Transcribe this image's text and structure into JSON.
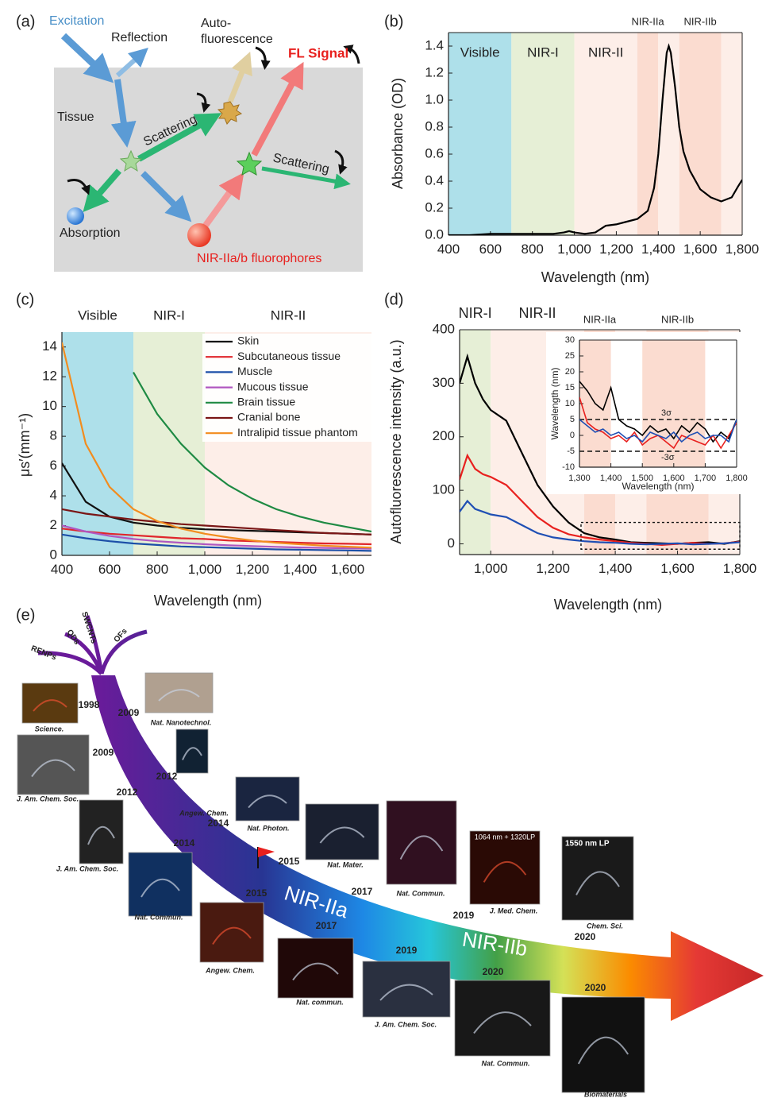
{
  "panel_a": {
    "label": "(a)",
    "excitation": "Excitation",
    "reflection": "Reflection",
    "autofluorescence": [
      "Auto-",
      "fluorescence"
    ],
    "fl_signal": "FL Signal",
    "tissue": "Tissue",
    "scattering": [
      "Scattering",
      "Scattering"
    ],
    "absorption": "Absorption",
    "fluorophores": "NIR-IIa/b fluorophores"
  },
  "chart_data": [
    {
      "type": "line",
      "panel": "(b)",
      "ylabel": "Absorbance (OD)",
      "xlabel": "Wavelength (nm)",
      "regions": [
        {
          "label": "Visible",
          "start": 400,
          "end": 700,
          "color": "#aee0ea"
        },
        {
          "label": "NIR-I",
          "start": 700,
          "end": 1000,
          "color": "#e6efd6"
        },
        {
          "label": "NIR-II",
          "start": 1000,
          "end": 1300,
          "color": "#fdeee8"
        },
        {
          "label": "NIR-IIa",
          "start": 1300,
          "end": 1400,
          "color": "#fbdcd0"
        },
        {
          "start": 1400,
          "end": 1500,
          "color": "#fdeee8"
        },
        {
          "label": "NIR-IIb",
          "start": 1500,
          "end": 1700,
          "color": "#fbdcd0"
        },
        {
          "start": 1700,
          "end": 1800,
          "color": "#fdeee8"
        }
      ],
      "x": [
        400,
        500,
        600,
        700,
        800,
        900,
        950,
        975,
        1000,
        1050,
        1100,
        1150,
        1200,
        1250,
        1300,
        1350,
        1380,
        1400,
        1420,
        1440,
        1450,
        1460,
        1480,
        1500,
        1520,
        1550,
        1600,
        1650,
        1700,
        1750,
        1780,
        1800
      ],
      "series": [
        {
          "color": "#000000",
          "values": [
            0.0,
            0.0,
            0.01,
            0.01,
            0.01,
            0.01,
            0.02,
            0.03,
            0.02,
            0.01,
            0.02,
            0.07,
            0.08,
            0.1,
            0.12,
            0.18,
            0.35,
            0.6,
            1.0,
            1.35,
            1.4,
            1.35,
            1.1,
            0.8,
            0.62,
            0.48,
            0.34,
            0.28,
            0.25,
            0.28,
            0.36,
            0.41
          ]
        }
      ],
      "xlim": [
        400,
        1800
      ],
      "xticks": [
        400,
        600,
        800,
        {
          "value": 1000,
          "label": "1,000"
        },
        {
          "value": 1200,
          "label": "1,200"
        },
        {
          "value": 1400,
          "label": "1,400"
        },
        {
          "value": 1600,
          "label": "1,600"
        },
        {
          "value": 1800,
          "label": "1,800"
        }
      ],
      "ylim": [
        0,
        1.5
      ],
      "yticks": [
        {
          "value": 0,
          "label": "0.0"
        },
        0.2,
        0.4,
        0.6,
        0.8,
        {
          "value": 1,
          "label": "1.0"
        },
        1.2,
        1.4
      ]
    },
    {
      "type": "line",
      "panel": "(c)",
      "ylabel": "μs′(mm⁻¹)",
      "xlabel": "Wavelength (nm)",
      "regions": [
        {
          "label": "Visible",
          "start": 400,
          "end": 700,
          "color": "#aee0ea"
        },
        {
          "label": "NIR-I",
          "start": 700,
          "end": 1000,
          "color": "#e6efd6"
        },
        {
          "label": "NIR-II",
          "start": 1000,
          "end": 1700,
          "color": "#fdeee8"
        }
      ],
      "x": [
        400,
        500,
        600,
        700,
        800,
        900,
        1000,
        1100,
        1200,
        1300,
        1400,
        1500,
        1600,
        1700
      ],
      "series": [
        {
          "name": "Skin",
          "color": "#111111",
          "values": [
            6.2,
            3.6,
            2.6,
            2.2,
            2.0,
            1.85,
            1.75,
            1.7,
            1.65,
            1.6,
            1.55,
            1.5,
            1.45,
            1.4
          ]
        },
        {
          "name": "Subcutaneous tissue",
          "color": "#e0262b",
          "values": [
            1.8,
            1.6,
            1.45,
            1.35,
            1.25,
            1.15,
            1.1,
            1.0,
            0.95,
            0.9,
            0.85,
            0.8,
            0.78,
            0.75
          ]
        },
        {
          "name": "Muscle",
          "color": "#1c4fa8",
          "values": [
            1.4,
            1.15,
            0.95,
            0.8,
            0.7,
            0.6,
            0.55,
            0.5,
            0.45,
            0.4,
            0.38,
            0.35,
            0.33,
            0.3
          ]
        },
        {
          "name": "Mucous tissue",
          "color": "#b057c0",
          "values": [
            2.0,
            1.6,
            1.3,
            1.1,
            0.95,
            0.85,
            0.75,
            0.68,
            0.62,
            0.57,
            0.53,
            0.5,
            0.47,
            0.45
          ]
        },
        {
          "name": "Brain tissue",
          "color": "#1e8a43",
          "values": [
            null,
            null,
            null,
            12.3,
            9.5,
            7.5,
            5.9,
            4.7,
            3.8,
            3.1,
            2.6,
            2.2,
            1.9,
            1.6
          ]
        },
        {
          "name": "Cranial bone",
          "color": "#7a1616",
          "values": [
            3.1,
            2.8,
            2.6,
            2.4,
            2.25,
            2.1,
            2.0,
            1.9,
            1.8,
            1.7,
            1.6,
            1.5,
            1.45,
            1.4
          ]
        },
        {
          "name": "Intralipid tissue phantom",
          "color": "#f28c1e",
          "values": [
            14.3,
            7.5,
            4.6,
            3.1,
            2.3,
            1.8,
            1.45,
            1.2,
            1.0,
            0.85,
            0.75,
            0.65,
            0.58,
            0.52
          ]
        }
      ],
      "xlim": [
        400,
        1700
      ],
      "xticks": [
        400,
        600,
        800,
        {
          "value": 1000,
          "label": "1,000"
        },
        {
          "value": 1200,
          "label": "1,200"
        },
        {
          "value": 1400,
          "label": "1,400"
        },
        {
          "value": 1600,
          "label": "1,600"
        }
      ],
      "ylim": [
        0,
        15
      ],
      "yticks": [
        0,
        2,
        4,
        6,
        8,
        10,
        12,
        14
      ]
    },
    {
      "type": "line",
      "panel": "(d)",
      "ylabel": "Autofluorescence intensity (a.u.)",
      "xlabel": "Wavelength (nm)",
      "regions": [
        {
          "label": "NIR-I",
          "start": 900,
          "end": 1000,
          "color": "#e6efd6"
        },
        {
          "label": "NIR-II",
          "start": 1000,
          "end": 1300,
          "color": "#fdeee8"
        },
        {
          "label": "NIR-IIa",
          "start": 1300,
          "end": 1400,
          "color": "#fbdcd0"
        },
        {
          "start": 1400,
          "end": 1500,
          "color": "#fdeee8"
        },
        {
          "label": "NIR-IIb",
          "start": 1500,
          "end": 1700,
          "color": "#fbdcd0"
        },
        {
          "start": 1700,
          "end": 1800,
          "color": "#fdeee8"
        }
      ],
      "x": [
        900,
        925,
        950,
        975,
        1000,
        1050,
        1100,
        1150,
        1200,
        1250,
        1300,
        1350,
        1400,
        1450,
        1500,
        1550,
        1600,
        1650,
        1700,
        1750,
        1800
      ],
      "series": [
        {
          "color": "#000000",
          "values": [
            300,
            350,
            300,
            270,
            250,
            230,
            170,
            110,
            70,
            40,
            20,
            12,
            8,
            3,
            2,
            1,
            0,
            2,
            3,
            0,
            5
          ]
        },
        {
          "color": "#e8201e",
          "values": [
            120,
            165,
            140,
            130,
            125,
            110,
            80,
            50,
            30,
            18,
            12,
            8,
            5,
            2,
            0,
            -2,
            0,
            2,
            0,
            1,
            4
          ]
        },
        {
          "color": "#1f4fb4",
          "values": [
            60,
            80,
            65,
            60,
            55,
            50,
            35,
            20,
            12,
            8,
            5,
            3,
            2,
            0,
            -1,
            0,
            1,
            -1,
            0,
            1,
            3
          ]
        }
      ],
      "highlight_box": {
        "x": [
          1290,
          1800
        ],
        "y": [
          -10,
          40
        ]
      },
      "xlim": [
        900,
        1800
      ],
      "xticks": [
        {
          "value": 1000,
          "label": "1,000"
        },
        {
          "value": 1200,
          "label": "1,200"
        },
        {
          "value": 1400,
          "label": "1,400"
        },
        {
          "value": 1600,
          "label": "1,600"
        },
        {
          "value": 1800,
          "label": "1,800"
        }
      ],
      "ylim": [
        -20,
        400
      ],
      "yticks": [
        0,
        100,
        200,
        300,
        400
      ]
    },
    {
      "type": "line",
      "ylabel": "Wavelength (nm)",
      "xlabel": "Wavelength (nm)",
      "regions": [
        {
          "start": 1300,
          "end": 1400,
          "color": "#fbdcd0"
        },
        {
          "start": 1500,
          "end": 1700,
          "color": "#fbdcd0"
        }
      ],
      "x": [
        1300,
        1325,
        1350,
        1375,
        1400,
        1425,
        1450,
        1475,
        1500,
        1525,
        1550,
        1575,
        1600,
        1625,
        1650,
        1675,
        1700,
        1725,
        1750,
        1775,
        1800
      ],
      "series": [
        {
          "color": "#000000",
          "values": [
            17,
            14,
            10,
            8,
            15,
            5,
            3,
            2,
            0,
            3,
            1,
            2,
            -1,
            3,
            1,
            4,
            2,
            -2,
            1,
            -1,
            5
          ]
        },
        {
          "color": "#e8201e",
          "values": [
            12,
            4,
            2,
            1,
            -1,
            0,
            -2,
            1,
            -3,
            -1,
            0,
            -2,
            -4,
            0,
            -1,
            -2,
            -3,
            0,
            -4,
            0,
            4
          ]
        },
        {
          "color": "#1f4fb4",
          "values": [
            5,
            3,
            1,
            2,
            0,
            1,
            -1,
            0,
            -2,
            1,
            0,
            -1,
            1,
            -2,
            0,
            1,
            -1,
            0,
            0,
            -2,
            5
          ]
        }
      ],
      "thresholds": [
        {
          "value": 5,
          "label": "3σ"
        },
        {
          "value": -5,
          "label": "-3σ"
        }
      ],
      "xlim": [
        1300,
        1800
      ],
      "xticks": [
        {
          "value": 1300,
          "label": "1,300"
        },
        {
          "value": 1400,
          "label": "1,400"
        },
        {
          "value": 1500,
          "label": "1,500"
        },
        {
          "value": 1600,
          "label": "1,600"
        },
        {
          "value": 1700,
          "label": "1,700"
        },
        {
          "value": 1800,
          "label": "1,800"
        }
      ],
      "ylim": [
        -10,
        30
      ],
      "yticks": [
        -10,
        -5,
        0,
        5,
        10,
        15,
        20,
        25,
        30
      ]
    }
  ],
  "panel_e": {
    "label": "(e)",
    "materials": [
      "RENPs",
      "QDs",
      "SWCNTs",
      "OFs"
    ],
    "bands": [
      "NIR-IIa",
      "NIR-IIb"
    ],
    "image_captions": [
      "1064 nm + 1320LP",
      "1550 nm LP"
    ],
    "milestones": [
      {
        "year": 1998,
        "journal": "Science."
      },
      {
        "year": 2009,
        "journal": "Nat. Nanotechnol."
      },
      {
        "year": 2009,
        "journal": "J. Am. Chem. Soc."
      },
      {
        "year": 2012,
        "journal": "Angew. Chem."
      },
      {
        "year": 2012,
        "journal": "J. Am. Chem. Soc."
      },
      {
        "year": 2014,
        "journal": "Nat. Photon."
      },
      {
        "year": 2014,
        "journal": "Nat. Commun."
      },
      {
        "year": 2015,
        "journal": "Nat. Mater."
      },
      {
        "year": 2015,
        "journal": "Angew. Chem."
      },
      {
        "year": 2017,
        "journal": "Nat. Commun."
      },
      {
        "year": 2017,
        "journal": "Nat. commun."
      },
      {
        "year": 2019,
        "journal": "J. Med. Chem."
      },
      {
        "year": 2019,
        "journal": "J. Am. Chem. Soc."
      },
      {
        "year": 2020,
        "journal": "Chem. Sci."
      },
      {
        "year": 2020,
        "journal": "Nat. Commun."
      },
      {
        "year": 2020,
        "journal": "Biomaterials"
      }
    ]
  }
}
